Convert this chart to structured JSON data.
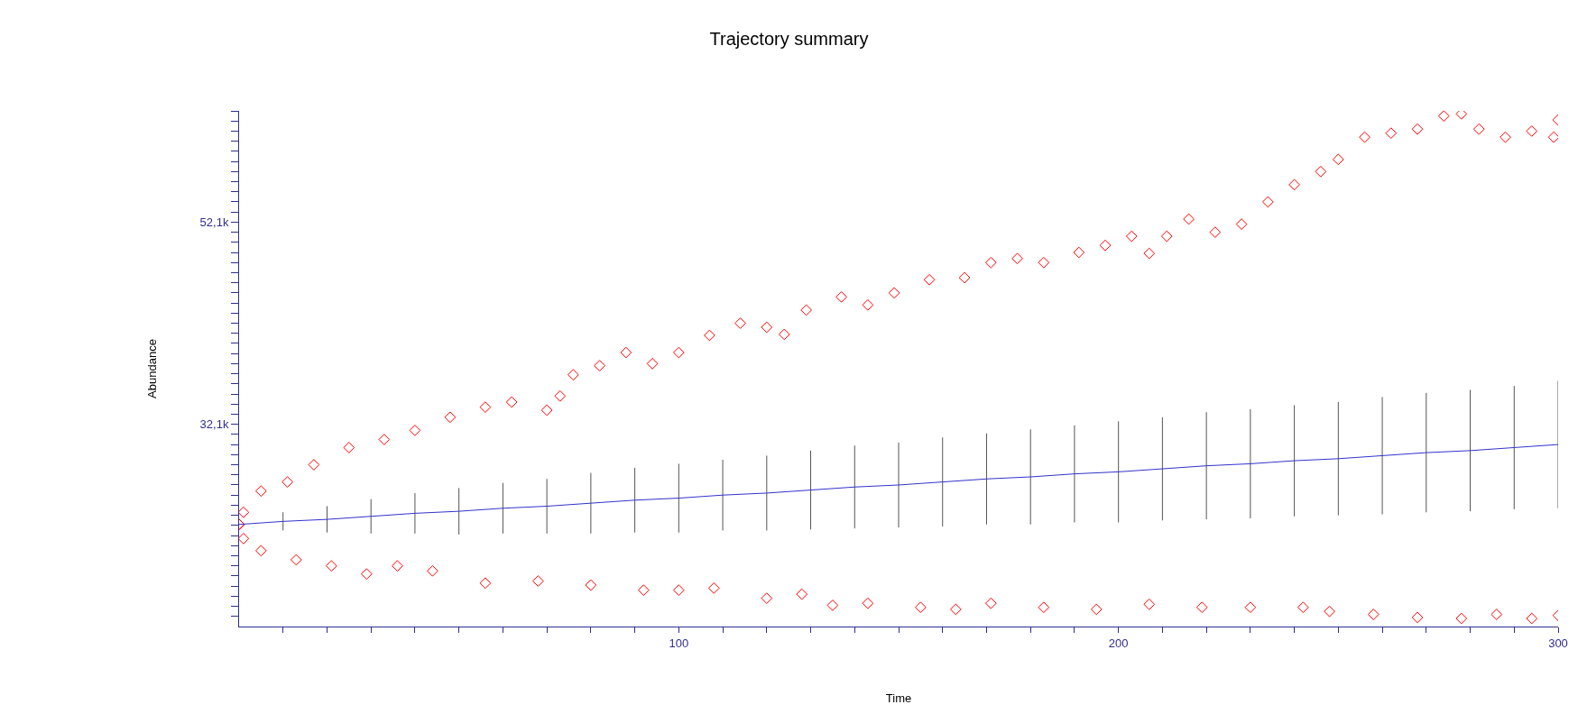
{
  "chart_data": {
    "type": "scatter",
    "title": "Trajectory summary",
    "xlabel": "Time",
    "ylabel": "Abundance",
    "xlim": [
      0,
      300
    ],
    "ylim": [
      12100,
      63100
    ],
    "xticks": [
      {
        "value": 10,
        "label": null
      },
      {
        "value": 20,
        "label": null
      },
      {
        "value": 30,
        "label": null
      },
      {
        "value": 40,
        "label": null
      },
      {
        "value": 50,
        "label": null
      },
      {
        "value": 60,
        "label": null
      },
      {
        "value": 70,
        "label": null
      },
      {
        "value": 80,
        "label": null
      },
      {
        "value": 90,
        "label": null
      },
      100,
      {
        "value": 110,
        "label": null
      },
      {
        "value": 120,
        "label": null
      },
      {
        "value": 130,
        "label": null
      },
      {
        "value": 140,
        "label": null
      },
      {
        "value": 150,
        "label": null
      },
      {
        "value": 160,
        "label": null
      },
      {
        "value": 170,
        "label": null
      },
      {
        "value": 180,
        "label": null
      },
      {
        "value": 190,
        "label": null
      },
      200,
      {
        "value": 210,
        "label": null
      },
      {
        "value": 220,
        "label": null
      },
      {
        "value": 230,
        "label": null
      },
      {
        "value": 240,
        "label": null
      },
      {
        "value": 250,
        "label": null
      },
      {
        "value": 260,
        "label": null
      },
      {
        "value": 270,
        "label": null
      },
      {
        "value": 280,
        "label": null
      },
      {
        "value": 290,
        "label": null
      },
      300
    ],
    "yticks": [
      {
        "value": 13100,
        "label": null
      },
      {
        "value": 14100,
        "label": null
      },
      {
        "value": 15100,
        "label": null
      },
      {
        "value": 16100,
        "label": null
      },
      {
        "value": 17100,
        "label": null
      },
      {
        "value": 18100,
        "label": null
      },
      {
        "value": 19100,
        "label": null
      },
      {
        "value": 20100,
        "label": null
      },
      {
        "value": 21100,
        "label": null
      },
      {
        "value": 22100,
        "label": null
      },
      {
        "value": 23100,
        "label": null
      },
      {
        "value": 24100,
        "label": null
      },
      {
        "value": 25100,
        "label": null
      },
      {
        "value": 26100,
        "label": null
      },
      {
        "value": 27100,
        "label": null
      },
      {
        "value": 28100,
        "label": null
      },
      {
        "value": 29100,
        "label": null
      },
      {
        "value": 30100,
        "label": null
      },
      {
        "value": 31100,
        "label": null
      },
      {
        "value": 32100,
        "label": "32,1k"
      },
      {
        "value": 33100,
        "label": null
      },
      {
        "value": 34100,
        "label": null
      },
      {
        "value": 35100,
        "label": null
      },
      {
        "value": 36100,
        "label": null
      },
      {
        "value": 37100,
        "label": null
      },
      {
        "value": 38100,
        "label": null
      },
      {
        "value": 39100,
        "label": null
      },
      {
        "value": 40100,
        "label": null
      },
      {
        "value": 41100,
        "label": null
      },
      {
        "value": 42100,
        "label": null
      },
      {
        "value": 43100,
        "label": null
      },
      {
        "value": 44100,
        "label": null
      },
      {
        "value": 45100,
        "label": null
      },
      {
        "value": 46100,
        "label": null
      },
      {
        "value": 47100,
        "label": null
      },
      {
        "value": 48100,
        "label": null
      },
      {
        "value": 49100,
        "label": null
      },
      {
        "value": 50100,
        "label": null
      },
      {
        "value": 51100,
        "label": null
      },
      {
        "value": 52100,
        "label": "52,1k"
      },
      {
        "value": 53100,
        "label": null
      },
      {
        "value": 54100,
        "label": null
      },
      {
        "value": 55100,
        "label": null
      },
      {
        "value": 56100,
        "label": null
      },
      {
        "value": 57100,
        "label": null
      },
      {
        "value": 58100,
        "label": null
      },
      {
        "value": 59100,
        "label": null
      },
      {
        "value": 60100,
        "label": null
      },
      {
        "value": 61100,
        "label": null
      },
      {
        "value": 62100,
        "label": null
      },
      {
        "value": 63100,
        "label": null
      }
    ],
    "series": [
      {
        "marker": "diamond",
        "color": "#ff0000",
        "x": [
          0,
          1,
          5,
          11,
          17,
          25,
          33,
          40,
          48,
          56,
          62,
          70,
          73,
          76,
          82,
          88,
          94,
          100,
          107,
          114,
          120,
          124,
          129,
          137,
          143,
          149,
          157,
          165,
          171,
          177,
          183,
          191,
          197,
          203,
          207,
          211,
          216,
          222,
          228,
          234,
          240,
          246,
          250,
          256,
          262,
          268,
          274,
          278,
          282,
          288,
          294,
          299,
          300
        ],
        "values": [
          22200,
          23400,
          25500,
          26400,
          28100,
          29800,
          30600,
          31500,
          32800,
          33800,
          34300,
          33500,
          34900,
          37000,
          37900,
          39200,
          38100,
          39200,
          40900,
          42100,
          41700,
          41000,
          43400,
          44700,
          43900,
          45100,
          46400,
          46600,
          48100,
          48500,
          48100,
          49100,
          49800,
          50700,
          49000,
          50700,
          52400,
          51100,
          51900,
          54100,
          55800,
          57100,
          58300,
          60500,
          60900,
          61300,
          62600,
          62800,
          61300,
          60500,
          61100,
          60500,
          62200
        ]
      },
      {
        "marker": "diamond",
        "color": "#ff0000",
        "x": [
          0,
          1,
          5,
          13,
          21,
          29,
          36,
          44,
          56,
          68,
          80,
          92,
          100,
          108,
          120,
          128,
          135,
          143,
          155,
          163,
          171,
          183,
          195,
          207,
          219,
          230,
          242,
          248,
          258,
          268,
          278,
          286,
          294,
          300
        ],
        "values": [
          22200,
          20800,
          19600,
          18700,
          18100,
          17300,
          18100,
          17600,
          16400,
          16600,
          16200,
          15700,
          15700,
          15900,
          14900,
          15300,
          14200,
          14400,
          14000,
          13800,
          14400,
          14000,
          13800,
          14300,
          14000,
          14000,
          14000,
          13600,
          13300,
          13000,
          12900,
          13300,
          12900,
          13200
        ]
      },
      {
        "type": "line",
        "marker": "none",
        "color": "#3333cc",
        "x": [
          0,
          10,
          20,
          30,
          40,
          50,
          60,
          70,
          80,
          90,
          100,
          110,
          120,
          130,
          140,
          150,
          160,
          170,
          180,
          190,
          200,
          210,
          220,
          230,
          240,
          250,
          260,
          270,
          280,
          290,
          300
        ],
        "values": [
          22200,
          22500,
          22700,
          23000,
          23300,
          23500,
          23800,
          24000,
          24300,
          24600,
          24800,
          25100,
          25300,
          25600,
          25900,
          26100,
          26400,
          26700,
          26900,
          27200,
          27400,
          27700,
          28000,
          28200,
          28500,
          28700,
          29000,
          29300,
          29500,
          29800,
          30100
        ],
        "errors": [
          0,
          900,
          1300,
          1700,
          2000,
          2300,
          2500,
          2700,
          3000,
          3200,
          3400,
          3500,
          3700,
          3900,
          4100,
          4200,
          4400,
          4500,
          4700,
          4800,
          5000,
          5100,
          5300,
          5400,
          5500,
          5600,
          5800,
          5900,
          6000,
          6100,
          6300
        ]
      }
    ]
  }
}
